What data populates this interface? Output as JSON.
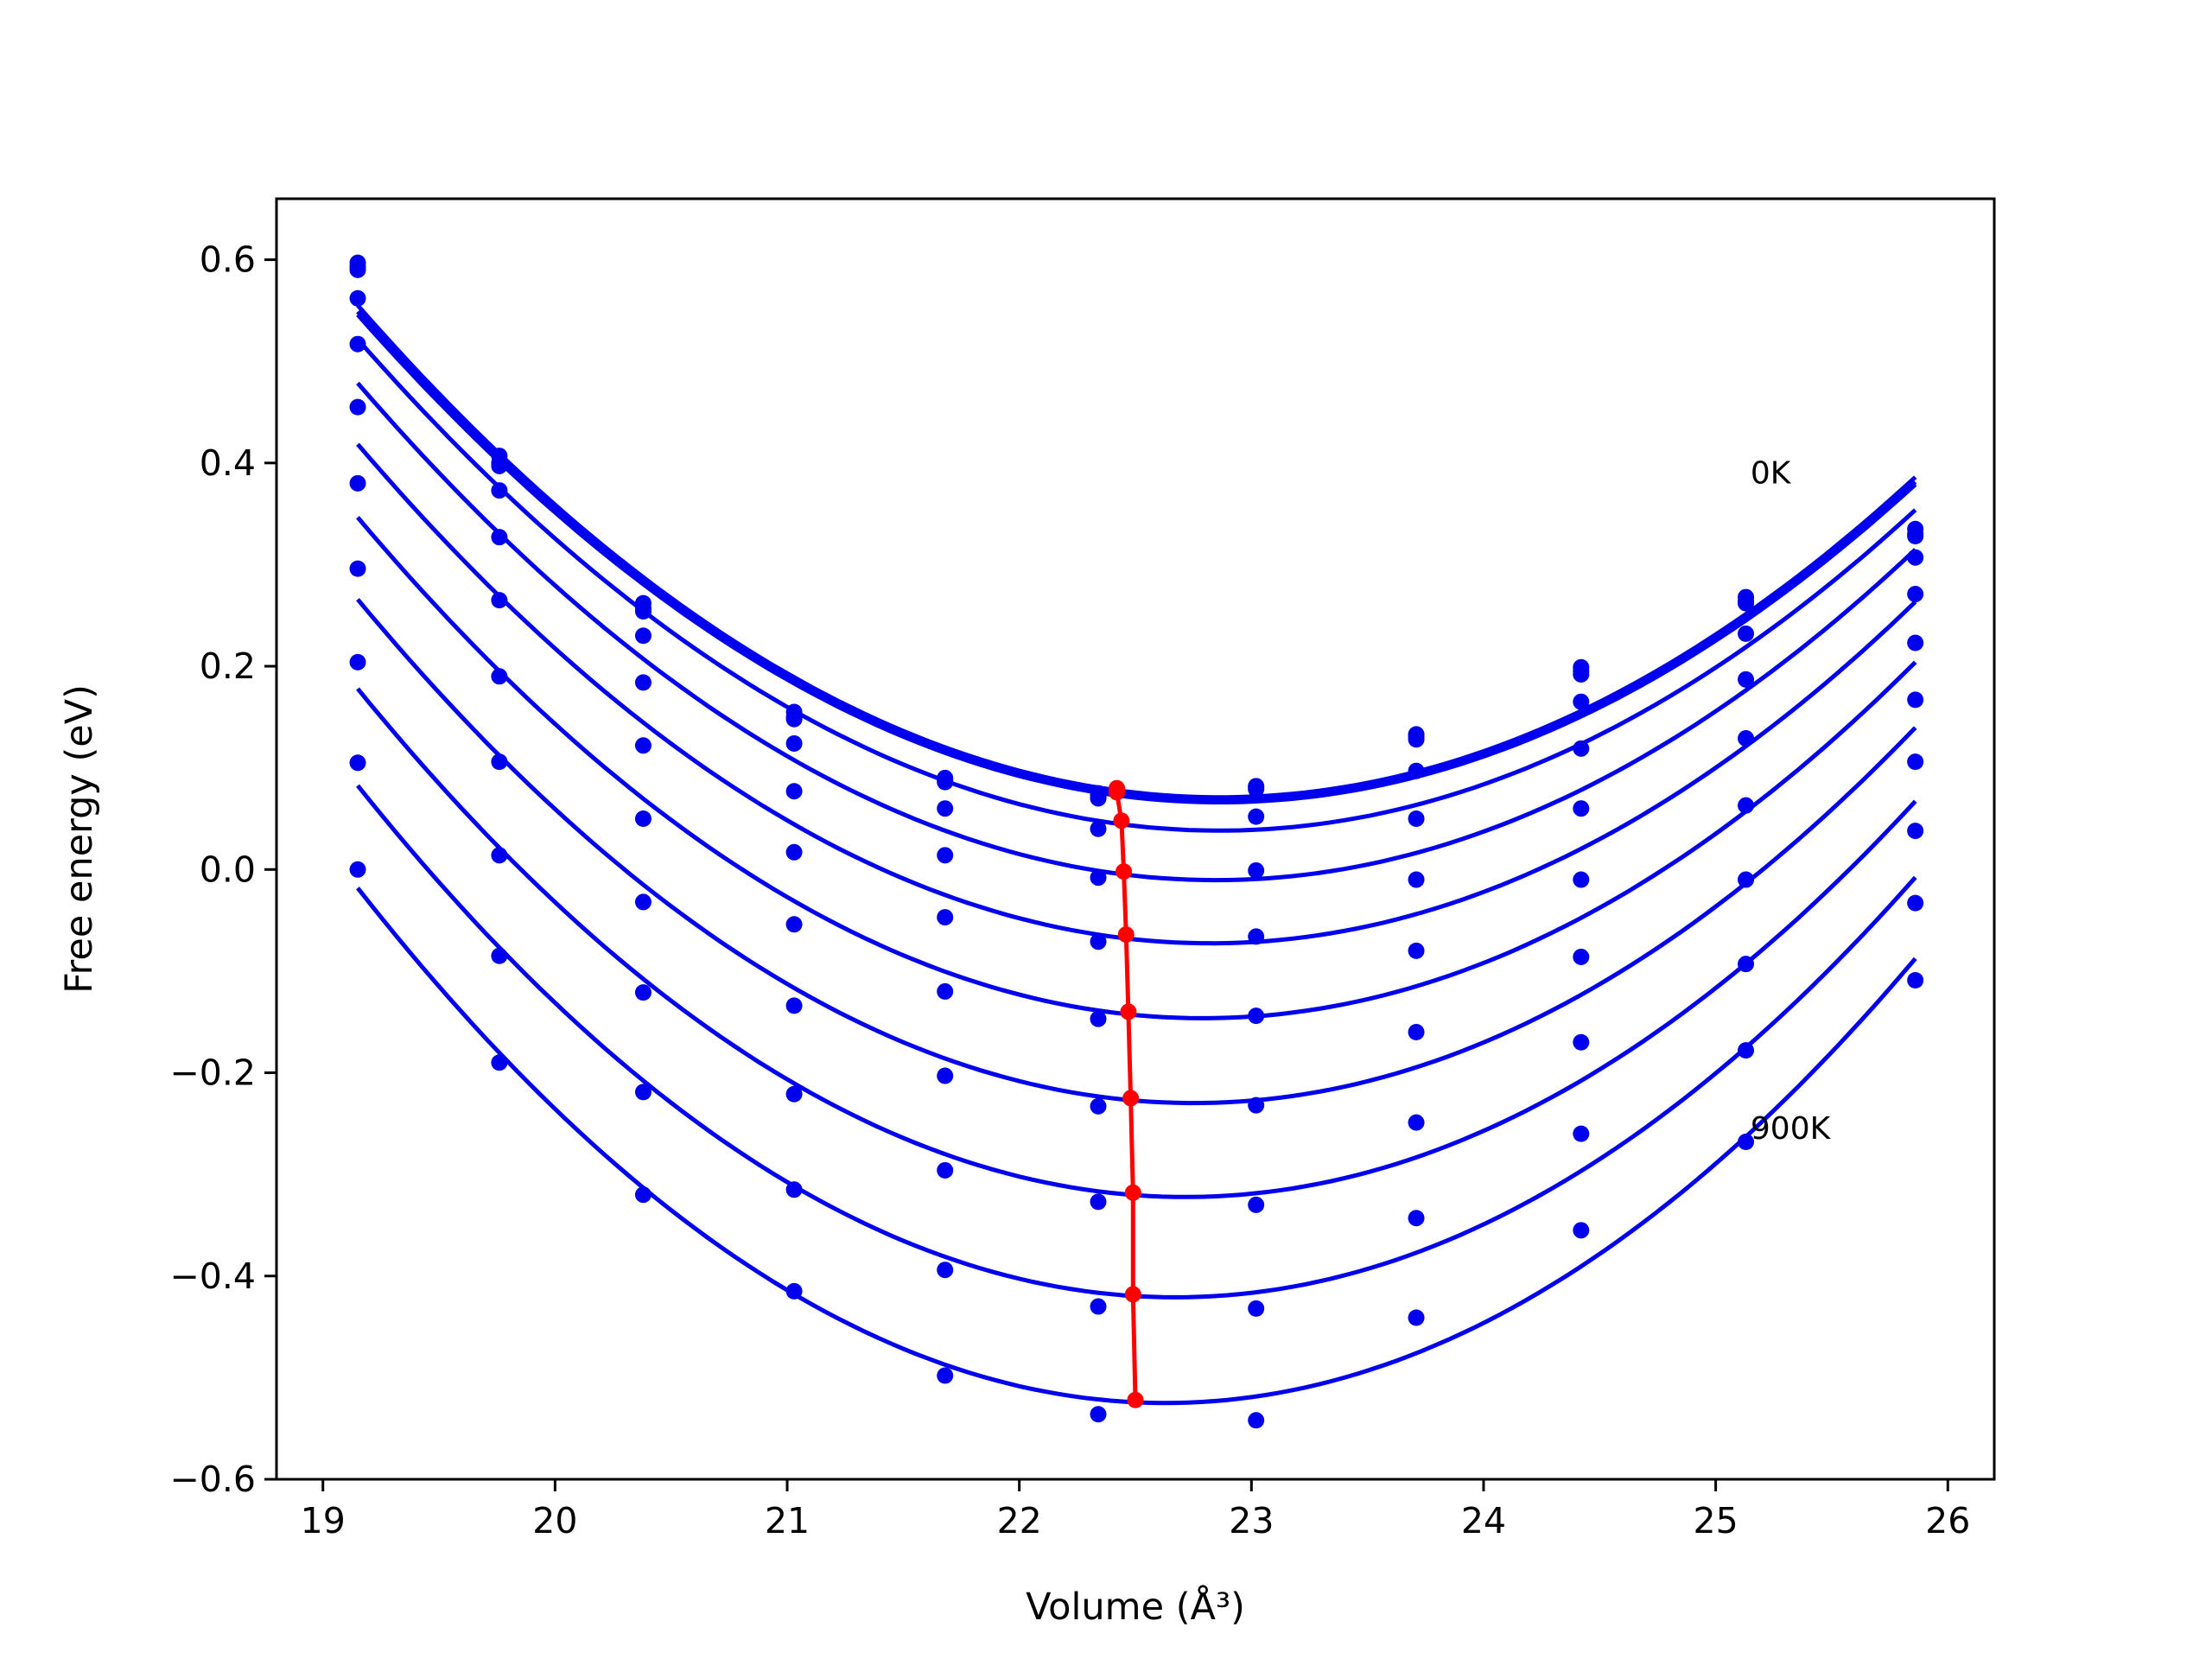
{
  "chart_data": {
    "type": "scatter",
    "title": "",
    "xlabel": "Volume (Å³)",
    "ylabel": "Free energy (eV)",
    "xlim": [
      18.8,
      26.2
    ],
    "ylim": [
      -0.6,
      0.66
    ],
    "xticks": [
      19,
      20,
      21,
      22,
      23,
      24,
      25,
      26
    ],
    "yticks": [
      -0.6,
      -0.4,
      -0.2,
      0.0,
      0.2,
      0.4,
      0.6
    ],
    "ytick_labels": [
      "−0.6",
      "−0.4",
      "−0.2",
      "0.0",
      "0.2",
      "0.4",
      "0.6"
    ],
    "grid": false,
    "legend": "none",
    "colors": {
      "fit": "#0000ee",
      "points": "#0000ee",
      "minima": "#ff0000"
    },
    "annotations": [
      {
        "text": "0K",
        "x": 25.15,
        "y": 0.39
      },
      {
        "text": "900K",
        "x": 25.15,
        "y": -0.255
      }
    ],
    "x": [
      19.15,
      19.76,
      20.38,
      21.03,
      21.68,
      22.34,
      23.02,
      23.71,
      24.42,
      25.13,
      25.86
    ],
    "series": [
      {
        "values": [
          0.597,
          0.407,
          0.262,
          0.155,
          0.09,
          0.075,
          0.082,
          0.133,
          0.199,
          0.268,
          0.335
        ],
        "min_x": 22.42,
        "min_y": 0.08
      },
      {
        "values": [
          0.593,
          0.4,
          0.257,
          0.15,
          0.088,
          0.072,
          0.081,
          0.131,
          0.195,
          0.264,
          0.33
        ],
        "min_x": 22.42,
        "min_y": 0.078
      },
      {
        "values": [
          0.59,
          0.397,
          0.254,
          0.148,
          0.086,
          0.07,
          0.079,
          0.128,
          0.192,
          0.262,
          0.328
        ],
        "min_x": 22.42,
        "min_y": 0.076
      },
      {
        "values": [
          0.562,
          0.373,
          0.23,
          0.124,
          0.06,
          0.04,
          0.052,
          0.097,
          0.165,
          0.232,
          0.307
        ],
        "min_x": 22.44,
        "min_y": 0.048
      },
      {
        "values": [
          0.517,
          0.327,
          0.184,
          0.077,
          0.014,
          -0.008,
          -0.001,
          0.05,
          0.119,
          0.187,
          0.271
        ],
        "min_x": 22.45,
        "min_y": -0.002
      },
      {
        "values": [
          0.455,
          0.265,
          0.122,
          0.017,
          -0.047,
          -0.071,
          -0.066,
          -0.01,
          0.06,
          0.129,
          0.223
        ],
        "min_x": 22.46,
        "min_y": -0.064
      },
      {
        "values": [
          0.38,
          0.19,
          0.05,
          -0.054,
          -0.12,
          -0.147,
          -0.144,
          -0.08,
          -0.01,
          0.063,
          0.167
        ],
        "min_x": 22.47,
        "min_y": -0.14
      },
      {
        "values": [
          0.296,
          0.106,
          -0.032,
          -0.134,
          -0.203,
          -0.233,
          -0.232,
          -0.16,
          -0.086,
          -0.01,
          0.106
        ],
        "min_x": 22.48,
        "min_y": -0.225
      },
      {
        "values": [
          0.204,
          0.014,
          -0.121,
          -0.221,
          -0.296,
          -0.327,
          -0.33,
          -0.249,
          -0.17,
          -0.093,
          0.038
        ],
        "min_x": 22.49,
        "min_y": -0.318
      },
      {
        "values": [
          0.105,
          -0.085,
          -0.219,
          -0.315,
          -0.394,
          -0.43,
          -0.432,
          -0.343,
          -0.26,
          -0.178,
          -0.033
        ],
        "min_x": 22.49,
        "min_y": -0.418
      },
      {
        "values": [
          0.0,
          -0.19,
          -0.32,
          -0.415,
          -0.498,
          -0.536,
          -0.542,
          -0.441,
          -0.355,
          -0.268,
          -0.109
        ],
        "min_x": 22.5,
        "min_y": -0.522
      }
    ]
  }
}
